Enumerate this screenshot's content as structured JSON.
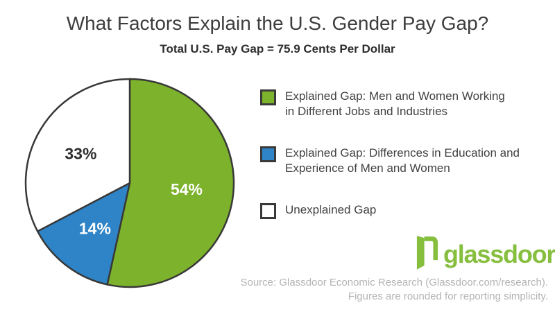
{
  "header": {
    "title": "What Factors Explain the U.S. Gender Pay Gap?",
    "subtitle": "Total U.S. Pay Gap = 75.9 Cents Per Dollar"
  },
  "chart_data": {
    "type": "pie",
    "title": "What Factors Explain the U.S. Gender Pay Gap?",
    "subtitle": "Total U.S. Pay Gap = 75.9 Cents Per Dollar",
    "start_angle": "12-oclock-clockwise",
    "stroke_color": "#383838",
    "stroke_width": 2.5,
    "label_radius_factor": 0.55,
    "legend_position": "right",
    "slices": [
      {
        "name": "explained-jobs-industries",
        "value": 54,
        "display": "54%",
        "color": "#7DB32C",
        "label_color": "#FFFFFF",
        "legend_lines": [
          "Explained Gap: Men and Women Working",
          "in Different Jobs and Industries"
        ]
      },
      {
        "name": "explained-education-experience",
        "value": 14,
        "display": "14%",
        "color": "#2E84C6",
        "label_color": "#FFFFFF",
        "legend_lines": [
          "Explained Gap: Differences in Education and",
          "Experience of Men and Women"
        ]
      },
      {
        "name": "unexplained",
        "value": 33,
        "display": "33%",
        "color": "#FFFFFF",
        "label_color": "#2E2E2E",
        "legend_lines": [
          "Unexplained Gap"
        ]
      }
    ]
  },
  "footer": {
    "source_line1": "Source: Glassdoor Economic Research (Glassdoor.com/research).",
    "source_line2": "Figures are rounded for reporting simplicity.",
    "logo_text": "glassdoor",
    "logo_mark": "®",
    "logo_color": "#86BE3E"
  }
}
